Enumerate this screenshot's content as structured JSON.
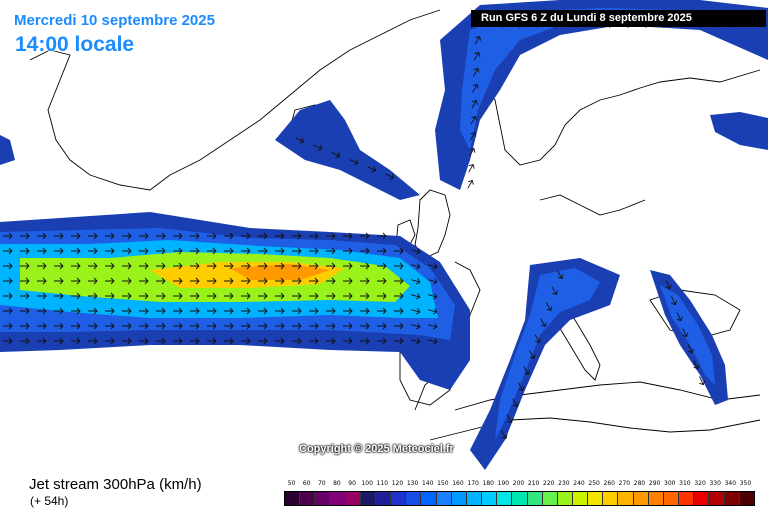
{
  "header": {
    "date_text": "Mercredi 10 septembre 2025",
    "time_text": "14:00 locale",
    "run_text": "Run GFS 6 Z du Lundi 8 septembre 2025"
  },
  "copyright": "Copyright © 2025 Meteociel.fr",
  "footer": {
    "parameter": "Jet stream 300hPa (km/h)",
    "forecast_step": "(+ 54h)"
  },
  "legend": {
    "ticks": [
      "50",
      "60",
      "70",
      "80",
      "90",
      "100",
      "110",
      "120",
      "130",
      "140",
      "150",
      "160",
      "170",
      "180",
      "190",
      "200",
      "210",
      "220",
      "230",
      "240",
      "250",
      "260",
      "270",
      "280",
      "290",
      "300",
      "310",
      "320",
      "330",
      "340",
      "350"
    ],
    "colors": [
      "#2a0033",
      "#4d004d",
      "#660066",
      "#80007a",
      "#990066",
      "#1a1a66",
      "#1f1f99",
      "#1f33cc",
      "#1a4de6",
      "#0066ff",
      "#1a80ff",
      "#0099ff",
      "#00b3ff",
      "#00ccff",
      "#00e6e6",
      "#00e6b3",
      "#33e680",
      "#66f24d",
      "#99f21a",
      "#ccf200",
      "#f2e600",
      "#ffcc00",
      "#ffb300",
      "#ff9900",
      "#ff8000",
      "#ff6600",
      "#ff3300",
      "#e60000",
      "#b30000",
      "#800000",
      "#4d0000"
    ]
  },
  "map_colors": {
    "land": "#ffffff",
    "coastline": "#000000",
    "jet_weak": "#1a3fb3",
    "jet_moderate": "#1f5fe6",
    "jet_strong": "#00b3ff",
    "jet_very_strong": "#99f21a",
    "jet_max": "#ff9900"
  },
  "icons": {
    "wind_arrow": "arrow-icon"
  }
}
